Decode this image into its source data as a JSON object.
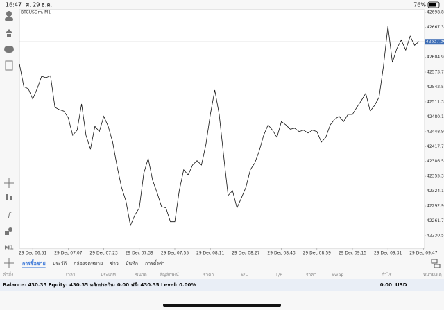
{
  "status_bar": {
    "time": "16:47",
    "date": "ศ. 29 ธ.ค.",
    "battery": "76%"
  },
  "chart_data": {
    "type": "line",
    "title": "BTCUSDm, M1",
    "color": "#111111",
    "grid": false,
    "categories": [
      null,
      null,
      null,
      "29 Dec 06:51",
      null,
      null,
      null,
      null,
      null,
      null,
      null,
      "29 Dec 07:07",
      null,
      null,
      null,
      null,
      null,
      null,
      null,
      "29 Dec 07:23",
      null,
      null,
      null,
      null,
      null,
      null,
      null,
      "29 Dec 07:39",
      null,
      null,
      null,
      null,
      null,
      null,
      null,
      "29 Dec 07:55",
      null,
      null,
      null,
      null,
      null,
      null,
      null,
      "29 Dec 08:11",
      null,
      null,
      null,
      null,
      null,
      null,
      null,
      "29 Dec 08:27",
      null,
      null,
      null,
      null,
      null,
      null,
      null,
      "29 Dec 08:43",
      null,
      null,
      null,
      null,
      null,
      null,
      null,
      "29 Dec 08:59",
      null,
      null,
      null,
      null,
      null,
      null,
      null,
      "29 Dec 09:15",
      null,
      null,
      null,
      null,
      null,
      null,
      null,
      "29 Dec 09:31",
      null,
      null,
      null,
      null,
      null,
      null,
      null,
      "29 Dec 09:47"
    ],
    "values": [
      42591,
      42543,
      42539,
      42517,
      42539,
      42565,
      42562,
      42566,
      42500,
      42495,
      42492,
      42478,
      42441,
      42452,
      42507,
      42441,
      42412,
      42460,
      42449,
      42481,
      42460,
      42427,
      42376,
      42332,
      42303,
      42252,
      42274,
      42289,
      42361,
      42393,
      42347,
      42321,
      42292,
      42289,
      42260,
      42260,
      42325,
      42369,
      42358,
      42379,
      42388,
      42379,
      42422,
      42485,
      42536,
      42485,
      42398,
      42315,
      42325,
      42289,
      42310,
      42332,
      42369,
      42383,
      42408,
      42441,
      42463,
      42452,
      42437,
      42470,
      42463,
      42454,
      42456,
      42449,
      42452,
      42446,
      42452,
      42449,
      42427,
      42437,
      42463,
      42475,
      42481,
      42470,
      42485,
      42485,
      42500,
      42514,
      42529,
      42492,
      42504,
      42521,
      42587,
      42670,
      42594,
      42623,
      42641,
      42620,
      42649,
      42630,
      42638,
      null
    ],
    "ylim": [
      42204.3,
      42704.6
    ],
    "yticks": [
      {
        "value": 42698.8,
        "label": "42698.80"
      },
      {
        "value": 42667.3,
        "label": "42667.30"
      },
      {
        "value": 42604.9,
        "label": "42604.90"
      },
      {
        "value": 42573.7,
        "label": "42573.70"
      },
      {
        "value": 42542.5,
        "label": "42542.50"
      },
      {
        "value": 42511.3,
        "label": "42511.30"
      },
      {
        "value": 42480.1,
        "label": "42480.10"
      },
      {
        "value": 42448.9,
        "label": "42448.90"
      },
      {
        "value": 42417.7,
        "label": "42417.70"
      },
      {
        "value": 42386.5,
        "label": "42386.50"
      },
      {
        "value": 42355.3,
        "label": "42355.30"
      },
      {
        "value": 42324.1,
        "label": "42324.10"
      },
      {
        "value": 42292.9,
        "label": "42292.90"
      },
      {
        "value": 42261.7,
        "label": "42261.70"
      },
      {
        "value": 42230.5,
        "label": "42230.50"
      }
    ],
    "current_price": 42637.36,
    "current_price_color": "#3d6db5"
  },
  "sidebar": {
    "timeframe": "M1"
  },
  "tabs": [
    "การซื้อขาย",
    "ประวัติ",
    "กล่องจดหมาย",
    "ข่าว",
    "บันทึก",
    "การตั้งค่า"
  ],
  "columns": [
    "คำสั่ง",
    "เวลา",
    "ประเภท",
    "ขนาด",
    "สัญลักษณ์",
    "ราคา",
    "S/L",
    "T/P",
    "ราคา",
    "Swap",
    "กำไร",
    "หมายเหตุ"
  ],
  "balance": {
    "text": "Balance: 430.35 Equity: 430.35 หลักประกัน: 0.00 ฟรี: 430.35 Level: 0.00%",
    "profit": "0.00",
    "currency": "USD"
  }
}
